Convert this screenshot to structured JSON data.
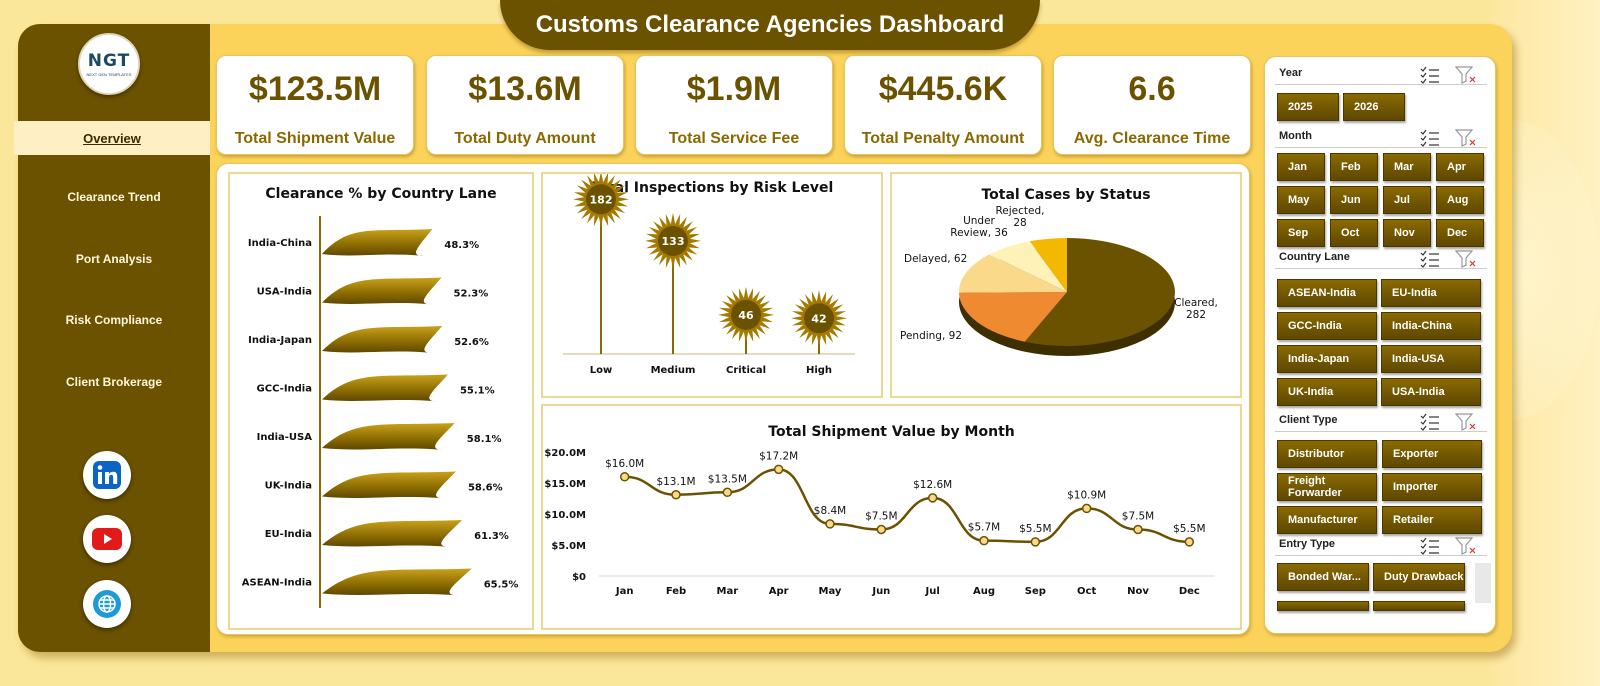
{
  "title": "Customs Clearance Agencies Dashboard",
  "logo": {
    "text": "NGT",
    "subtext": "NEXT GEN TEMPLATES"
  },
  "nav": {
    "active": "Overview",
    "items": [
      "Clearance Trend",
      "Port Analysis",
      "Risk Compliance",
      "Client Brokerage"
    ]
  },
  "social": [
    "linkedin-icon",
    "youtube-icon",
    "globe-icon"
  ],
  "kpis": [
    {
      "value": "$123.5M",
      "label": "Total Shipment Value"
    },
    {
      "value": "$13.6M",
      "label": "Total Duty Amount"
    },
    {
      "value": "$1.9M",
      "label": "Total Service Fee"
    },
    {
      "value": "$445.6K",
      "label": "Total Penalty Amount"
    },
    {
      "value": "6.6",
      "label": "Avg. Clearance Time"
    }
  ],
  "colors": {
    "primary": "#6b5200",
    "accent": "#fcd35a",
    "panel": "#ffffff"
  },
  "chart_data": [
    {
      "type": "bar",
      "orientation": "horizontal",
      "title": "Clearance % by Country Lane",
      "categories": [
        "India-China",
        "USA-India",
        "India-Japan",
        "GCC-India",
        "India-USA",
        "UK-India",
        "EU-India",
        "ASEAN-India"
      ],
      "values": [
        48.3,
        52.3,
        52.6,
        55.1,
        58.1,
        58.6,
        61.3,
        65.5
      ],
      "labels": [
        "48.3%",
        "52.3%",
        "52.6%",
        "55.1%",
        "58.1%",
        "58.6%",
        "61.3%",
        "65.5%"
      ],
      "unit": "%"
    },
    {
      "type": "bar",
      "style": "lollipop-starburst",
      "title": "Total Inspections by Risk Level",
      "categories": [
        "Low",
        "Medium",
        "Critical",
        "High"
      ],
      "values": [
        182,
        133,
        46,
        42
      ]
    },
    {
      "type": "pie",
      "style": "3d",
      "title": "Total Cases by Status",
      "slices": [
        {
          "label": "Cleared",
          "value": 282,
          "color": "#6b5200"
        },
        {
          "label": "Pending",
          "value": 92,
          "color": "#f08a30"
        },
        {
          "label": "Delayed",
          "value": 62,
          "color": "#fbd98a"
        },
        {
          "label": "Under Review",
          "value": 36,
          "color": "#fff2b8"
        },
        {
          "label": "Rejected",
          "value": 28,
          "color": "#f5b800"
        }
      ]
    },
    {
      "type": "line",
      "title": "Total Shipment Value by Month",
      "categories": [
        "Jan",
        "Feb",
        "Mar",
        "Apr",
        "May",
        "Jun",
        "Jul",
        "Aug",
        "Sep",
        "Oct",
        "Nov",
        "Dec"
      ],
      "values": [
        16.0,
        13.1,
        13.5,
        17.2,
        8.4,
        7.5,
        12.6,
        5.7,
        5.5,
        10.9,
        7.5,
        5.5
      ],
      "labels": [
        "$16.0M",
        "$13.1M",
        "$13.5M",
        "$17.2M",
        "$8.4M",
        "$7.5M",
        "$12.6M",
        "$5.7M",
        "$5.5M",
        "$10.9M",
        "$7.5M",
        "$5.5M"
      ],
      "yticks": [
        "$0",
        "$5.0M",
        "$10.0M",
        "$15.0M",
        "$20.0M"
      ],
      "ylim": [
        0,
        20
      ]
    }
  ],
  "filters": {
    "year": {
      "title": "Year",
      "options": [
        "2025",
        "2026"
      ]
    },
    "month": {
      "title": "Month",
      "options": [
        "Jan",
        "Feb",
        "Mar",
        "Apr",
        "May",
        "Jun",
        "Jul",
        "Aug",
        "Sep",
        "Oct",
        "Nov",
        "Dec"
      ]
    },
    "country_lane": {
      "title": "Country Lane",
      "options": [
        "ASEAN-India",
        "EU-India",
        "GCC-India",
        "India-China",
        "India-Japan",
        "India-USA",
        "UK-India",
        "USA-India"
      ]
    },
    "client_type": {
      "title": "Client Type",
      "options": [
        "Distributor",
        "Exporter",
        "Freight Forwarder",
        "Importer",
        "Manufacturer",
        "Retailer"
      ]
    },
    "entry_type": {
      "title": "Entry Type",
      "options": [
        "Bonded War...",
        "Duty Drawback"
      ]
    }
  }
}
